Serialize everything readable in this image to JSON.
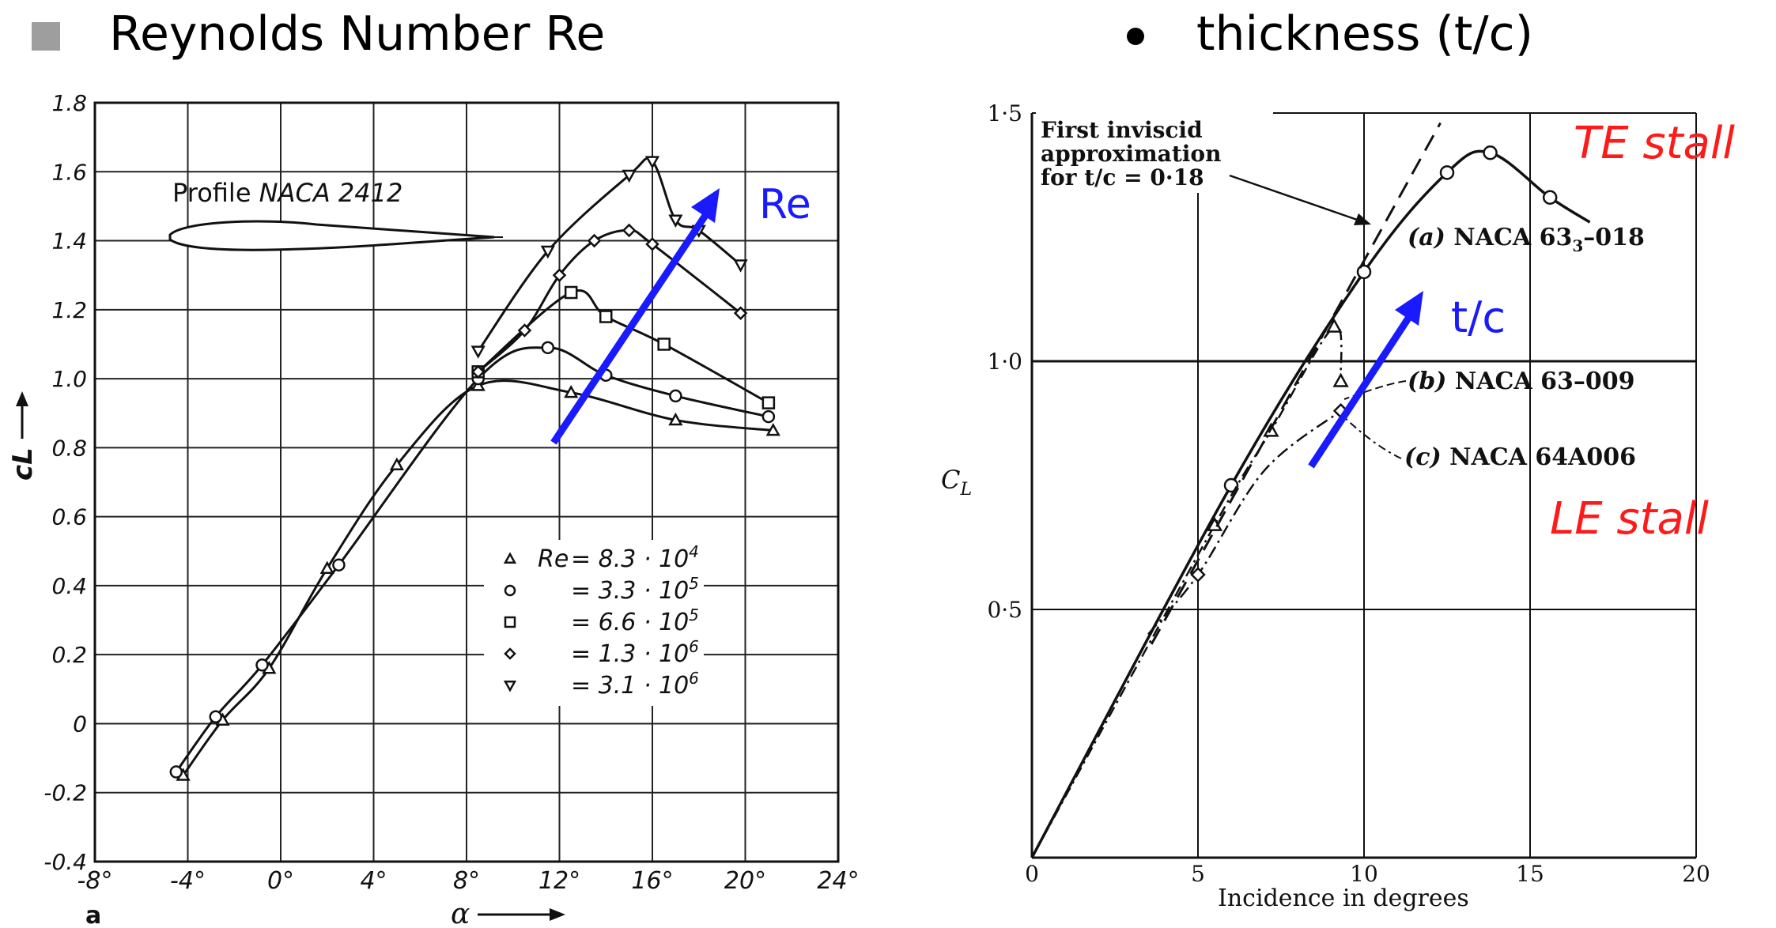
{
  "header": {
    "left_title": "Reynolds Number Re",
    "left_bullet_icon": "grey-square-bullet",
    "right_title": "thickness (t/c)",
    "right_bullet_icon": "black-dot-bullet"
  },
  "colors": {
    "arrow": "#1a1aff",
    "stall_label": "#ff1a1a",
    "ink": "#111111"
  },
  "chart_data": [
    {
      "type": "line",
      "title": "Profile NACA 2412",
      "xlabel": "α",
      "ylabel": "cL",
      "panel_label": "a",
      "xlim": [
        -8,
        24
      ],
      "ylim": [
        -0.4,
        1.8
      ],
      "x_ticks": [
        "-8°",
        "-4°",
        "0°",
        "4°",
        "8°",
        "12°",
        "16°",
        "20°",
        "24°"
      ],
      "y_ticks": [
        "-0.4",
        "-0.2",
        "0",
        "0.2",
        "0.4",
        "0.6",
        "0.8",
        "1.0",
        "1.2",
        "1.4",
        "1.6",
        "1.8"
      ],
      "grid": true,
      "legend_prefix": "Re",
      "legend_position": "lower-right",
      "annotation": "Re",
      "series": [
        {
          "name": "8.3·10⁴",
          "legend_label": "= 8.3 · 10",
          "legend_exp": "4",
          "marker": "triangle-up",
          "x": [
            -4.2,
            -2.5,
            -0.5,
            2,
            5,
            8.5,
            12.5,
            17,
            21.2
          ],
          "y": [
            -0.15,
            0.01,
            0.16,
            0.45,
            0.75,
            0.98,
            0.96,
            0.88,
            0.85
          ]
        },
        {
          "name": "3.3·10⁵",
          "legend_label": "= 3.3 · 10",
          "legend_exp": "5",
          "marker": "circle",
          "x": [
            -4.5,
            -2.8,
            -0.8,
            2.5,
            8.5,
            11.5,
            14,
            17,
            21
          ],
          "y": [
            -0.14,
            0.02,
            0.17,
            0.46,
            1.0,
            1.09,
            1.01,
            0.95,
            0.89
          ]
        },
        {
          "name": "6.6·10⁵",
          "legend_label": "= 6.6 · 10",
          "legend_exp": "5",
          "marker": "square",
          "x": [
            8.5,
            12.5,
            14,
            16.5,
            21
          ],
          "y": [
            1.02,
            1.25,
            1.18,
            1.1,
            0.93
          ]
        },
        {
          "name": "1.3·10⁶",
          "legend_label": "= 1.3 · 10",
          "legend_exp": "6",
          "marker": "diamond",
          "x": [
            8.5,
            10.5,
            12,
            13.5,
            15,
            16,
            19.8
          ],
          "y": [
            1.02,
            1.14,
            1.3,
            1.4,
            1.43,
            1.39,
            1.19
          ]
        },
        {
          "name": "3.1·10⁶",
          "legend_label": "= 3.1 · 10",
          "legend_exp": "6",
          "marker": "triangle-down",
          "x": [
            8.5,
            11.5,
            15,
            16,
            17,
            18,
            19.8
          ],
          "y": [
            1.08,
            1.37,
            1.59,
            1.63,
            1.46,
            1.43,
            1.33
          ]
        }
      ]
    },
    {
      "type": "line",
      "xlabel": "Incidence in degrees",
      "ylabel": "CL",
      "xlim": [
        0,
        20
      ],
      "ylim": [
        0,
        1.5
      ],
      "x_ticks": [
        "0",
        "5",
        "10",
        "15",
        "20"
      ],
      "y_ticks": [
        "0·5",
        "1·0",
        "1·5"
      ],
      "grid": true,
      "annotations": {
        "inviscid": [
          "First inviscid",
          "approximation",
          "for t/c = 0·18"
        ],
        "arrow_label": "t/c",
        "te_stall": "TE stall",
        "le_stall": "LE stall"
      },
      "series": [
        {
          "name": "(a) NACA 63₃–018",
          "label_letter": "(a)",
          "label_name": "NACA 63",
          "label_sub": "3",
          "label_suffix": "–018",
          "marker": "circle",
          "x": [
            0,
            6,
            10,
            12.5,
            13.8,
            15.6,
            16.8
          ],
          "y": [
            0,
            0.75,
            1.18,
            1.38,
            1.42,
            1.33,
            1.28
          ]
        },
        {
          "name": "(b) NACA 63–009",
          "label_letter": "(b)",
          "label_name": "NACA 63–009",
          "marker": "triangle-up",
          "x": [
            0,
            5.5,
            7.2,
            9.1,
            9.3
          ],
          "y": [
            0,
            0.67,
            0.86,
            1.07,
            0.96
          ]
        },
        {
          "name": "(c) NACA 64A006",
          "label_letter": "(c)",
          "label_name": "NACA 64A006",
          "marker": "diamond",
          "x": [
            3.5,
            5,
            7,
            9.3
          ],
          "y": [
            0.45,
            0.57,
            0.78,
            0.9
          ]
        },
        {
          "name": "inviscid",
          "marker": "none",
          "style": "dashed",
          "x": [
            3.6,
            12.3
          ],
          "y": [
            0.43,
            1.48
          ]
        }
      ]
    }
  ]
}
